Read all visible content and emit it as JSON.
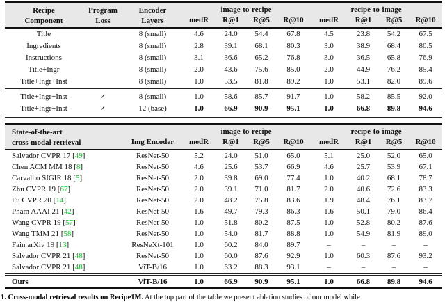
{
  "colors": {
    "header_bg": "#e8e8e8",
    "cite_green": "#00c81e",
    "rule": "#111111"
  },
  "table1": {
    "header": {
      "col1_line1": "Recipe",
      "col1_line2": "Component",
      "col2_line1": "Program",
      "col2_line2": "Loss",
      "col3_line1": "Encoder",
      "col3_line2": "Layers",
      "group1": "image-to-recipe",
      "group2": "recipe-to-image",
      "metric_cols": [
        "medR",
        "R@1",
        "R@5",
        "R@10",
        "medR",
        "R@1",
        "R@5",
        "R@10"
      ]
    },
    "rows": [
      {
        "component": "Title",
        "loss": "",
        "layers": "8 (small)",
        "vals": [
          "4.6",
          "24.0",
          "54.4",
          "67.8",
          "4.5",
          "23.8",
          "54.2",
          "67.5"
        ],
        "bold_vals": false
      },
      {
        "component": "Ingredients",
        "loss": "",
        "layers": "8 (small)",
        "vals": [
          "2.8",
          "39.1",
          "68.1",
          "80.3",
          "3.0",
          "38.9",
          "68.4",
          "80.5"
        ],
        "bold_vals": false
      },
      {
        "component": "Instructions",
        "loss": "",
        "layers": "8 (small)",
        "vals": [
          "3.1",
          "36.6",
          "65.2",
          "76.8",
          "3.0",
          "36.5",
          "65.8",
          "76.9"
        ],
        "bold_vals": false
      },
      {
        "component": "Title+Ingr",
        "loss": "",
        "layers": "8 (small)",
        "vals": [
          "2.0",
          "43.6",
          "75.6",
          "85.0",
          "2.0",
          "44.9",
          "76.2",
          "85.4"
        ],
        "bold_vals": false
      },
      {
        "component": "Title+Ingr+Inst",
        "loss": "",
        "layers": "8 (small)",
        "vals": [
          "1.0",
          "53.5",
          "81.8",
          "89.2",
          "1.0",
          "53.1",
          "82.0",
          "89.6"
        ],
        "bold_vals": false
      },
      {
        "component": "Title+Ingr+Inst",
        "loss": "✓",
        "layers": "8 (small)",
        "vals": [
          "1.0",
          "58.6",
          "85.7",
          "91.7",
          "1.0",
          "58.2",
          "85.5",
          "92.0"
        ],
        "bold_vals": false
      },
      {
        "component": "Title+Ingr+Inst",
        "loss": "✓",
        "layers": "12 (base)",
        "vals": [
          "1.0",
          "66.9",
          "90.9",
          "95.1",
          "1.0",
          "66.8",
          "89.8",
          "94.6"
        ],
        "bold_vals": true
      }
    ],
    "separator_after": [
      4,
      6
    ]
  },
  "table2": {
    "header": {
      "col1_line1": "State-of-the-art",
      "col1_line2": "cross-modal retrieval",
      "col2": "Img Encoder",
      "group1": "image-to-recipe",
      "group2": "recipe-to-image",
      "metric_cols": [
        "medR",
        "R@1",
        "R@5",
        "R@10",
        "medR",
        "R@1",
        "R@5",
        "R@10"
      ]
    },
    "rows": [
      {
        "method": "Salvador CVPR 17",
        "cite": "49",
        "encoder": "ResNet-50",
        "vals": [
          "5.2",
          "24.0",
          "51.0",
          "65.0",
          "5.1",
          "25.0",
          "52.0",
          "65.0"
        ],
        "bold_row": false
      },
      {
        "method": "Chen ACM MM 18",
        "cite": "8",
        "encoder": "ResNet-50",
        "vals": [
          "4.6",
          "25.6",
          "53.7",
          "66.9",
          "4.6",
          "25.7",
          "53.9",
          "67.1"
        ],
        "bold_row": false
      },
      {
        "method": "Carvalho SIGIR 18",
        "cite": "5",
        "encoder": "ResNet-50",
        "vals": [
          "2.0",
          "39.8",
          "69.0",
          "77.4",
          "1.0",
          "40.2",
          "68.1",
          "78.7"
        ],
        "bold_row": false
      },
      {
        "method": "Zhu CVPR 19",
        "cite": "67",
        "encoder": "ResNet-50",
        "vals": [
          "2.0",
          "39.1",
          "71.0",
          "81.7",
          "2.0",
          "40.6",
          "72.6",
          "83.3"
        ],
        "bold_row": false
      },
      {
        "method": "Fu CVPR 20",
        "cite": "14",
        "encoder": "ResNet-50",
        "vals": [
          "2.0",
          "48.2",
          "75.8",
          "83.6",
          "1.9",
          "48.4",
          "76.1",
          "83.7"
        ],
        "bold_row": false
      },
      {
        "method": "Pham AAAI 21",
        "cite": "42",
        "encoder": "ResNet-50",
        "vals": [
          "1.6",
          "49.7",
          "79.3",
          "86.3",
          "1.6",
          "50.1",
          "79.0",
          "86.4"
        ],
        "bold_row": false
      },
      {
        "method": "Wang CVPR 19",
        "cite": "57",
        "encoder": "ResNet-50",
        "vals": [
          "1.0",
          "51.8",
          "80.2",
          "87.5",
          "1.0",
          "52.8",
          "80.2",
          "87.6"
        ],
        "bold_row": false
      },
      {
        "method": "Wang TMM 21",
        "cite": "58",
        "encoder": "ResNet-50",
        "vals": [
          "1.0",
          "54.0",
          "81.7",
          "88.8",
          "1.0",
          "54.9",
          "81.9",
          "89.0"
        ],
        "bold_row": false
      },
      {
        "method": "Fain arXiv 19",
        "cite": "13",
        "encoder": "ResNeXt-101",
        "vals": [
          "1.0",
          "60.2",
          "84.0",
          "89.7",
          "–",
          "–",
          "–",
          "–"
        ],
        "bold_row": false
      },
      {
        "method": "Salvador CVPR 21",
        "cite": "48",
        "encoder": "ResNet-50",
        "vals": [
          "1.0",
          "60.0",
          "87.6",
          "92.9",
          "1.0",
          "60.3",
          "87.6",
          "93.2"
        ],
        "bold_row": false
      },
      {
        "method": "Salvador CVPR 21",
        "cite": "48",
        "encoder": "ViT-B/16",
        "vals": [
          "1.0",
          "63.2",
          "88.3",
          "93.1",
          "–",
          "–",
          "–",
          "–"
        ],
        "bold_row": false
      },
      {
        "method": "Ours",
        "cite": "",
        "encoder": "ViT-B/16",
        "vals": [
          "1.0",
          "66.9",
          "90.9",
          "95.1",
          "1.0",
          "66.8",
          "89.8",
          "94.6"
        ],
        "bold_row": true
      }
    ],
    "separator_after": [
      10
    ]
  },
  "caption": {
    "bold_part": "1. Cross-modal retrieval results on Recipe1M.",
    "rest": " At the top part of the table we present ablation studies of our model while"
  }
}
